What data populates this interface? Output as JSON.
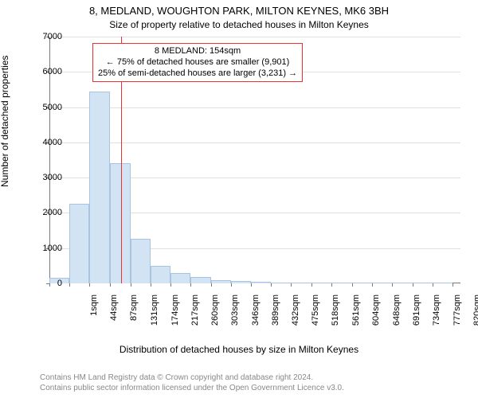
{
  "header": {
    "address": "8, MEDLAND, WOUGHTON PARK, MILTON KEYNES, MK6 3BH",
    "subtitle": "Size of property relative to detached houses in Milton Keynes"
  },
  "chart": {
    "type": "histogram",
    "ylabel": "Number of detached properties",
    "xlabel": "Distribution of detached houses by size in Milton Keynes",
    "background_color": "#ffffff",
    "grid_color": "#e0e0e0",
    "axis_color": "#7a7a7a",
    "bar_fill": "#d2e3f4",
    "bar_stroke": "#a9c4e0",
    "marker_color": "#ee3030",
    "marker_value": 154,
    "ylim": [
      0,
      7000
    ],
    "ytick_step": 1000,
    "x_min": 1,
    "x_max": 880,
    "xtick_labels": [
      "1sqm",
      "44sqm",
      "87sqm",
      "131sqm",
      "174sqm",
      "217sqm",
      "260sqm",
      "303sqm",
      "346sqm",
      "389sqm",
      "432sqm",
      "475sqm",
      "518sqm",
      "561sqm",
      "604sqm",
      "648sqm",
      "691sqm",
      "734sqm",
      "777sqm",
      "820sqm",
      "863sqm"
    ],
    "xtick_values": [
      1,
      44,
      87,
      131,
      174,
      217,
      260,
      303,
      346,
      389,
      432,
      475,
      518,
      561,
      604,
      648,
      691,
      734,
      777,
      820,
      863
    ],
    "bars": [
      {
        "x0": 1,
        "x1": 44,
        "value": 160
      },
      {
        "x0": 44,
        "x1": 87,
        "value": 2260
      },
      {
        "x0": 87,
        "x1": 131,
        "value": 5440
      },
      {
        "x0": 131,
        "x1": 174,
        "value": 3400
      },
      {
        "x0": 174,
        "x1": 217,
        "value": 1260
      },
      {
        "x0": 217,
        "x1": 260,
        "value": 500
      },
      {
        "x0": 260,
        "x1": 303,
        "value": 300
      },
      {
        "x0": 303,
        "x1": 346,
        "value": 170
      },
      {
        "x0": 346,
        "x1": 389,
        "value": 90
      },
      {
        "x0": 389,
        "x1": 432,
        "value": 70
      },
      {
        "x0": 432,
        "x1": 475,
        "value": 40
      },
      {
        "x0": 475,
        "x1": 518,
        "value": 20
      },
      {
        "x0": 518,
        "x1": 561,
        "value": 12
      },
      {
        "x0": 561,
        "x1": 604,
        "value": 10
      },
      {
        "x0": 604,
        "x1": 648,
        "value": 8
      },
      {
        "x0": 648,
        "x1": 691,
        "value": 6
      },
      {
        "x0": 691,
        "x1": 734,
        "value": 5
      },
      {
        "x0": 734,
        "x1": 777,
        "value": 4
      },
      {
        "x0": 777,
        "x1": 820,
        "value": 3
      },
      {
        "x0": 820,
        "x1": 863,
        "value": 2
      }
    ]
  },
  "annotation": {
    "border_color": "#ee3030",
    "line1": "8 MEDLAND: 154sqm",
    "line2": "← 75% of detached houses are smaller (9,901)",
    "line3": "25% of semi-detached houses are larger (3,231) →"
  },
  "footer": {
    "line1": "Contains HM Land Registry data © Crown copyright and database right 2024.",
    "line2": "Contains public sector information licensed under the Open Government Licence v3.0."
  }
}
